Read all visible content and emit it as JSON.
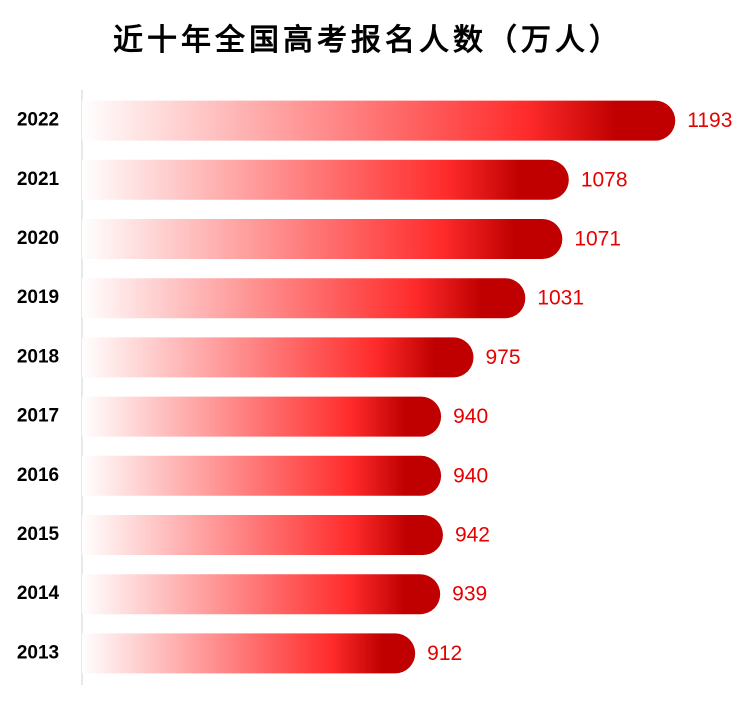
{
  "chart_data": {
    "type": "bar",
    "orientation": "horizontal",
    "title": "近十年全国高考报名人数（万人）",
    "categories": [
      "2022",
      "2021",
      "2020",
      "2019",
      "2018",
      "2017",
      "2016",
      "2015",
      "2014",
      "2013"
    ],
    "values": [
      1193,
      1078,
      1071,
      1031,
      975,
      940,
      940,
      942,
      939,
      912
    ],
    "xlim": [
      552,
      1250
    ],
    "gradient": [
      "#ffffff",
      "#ff2b2b",
      "#c00000"
    ],
    "label_color": "#e60000"
  }
}
